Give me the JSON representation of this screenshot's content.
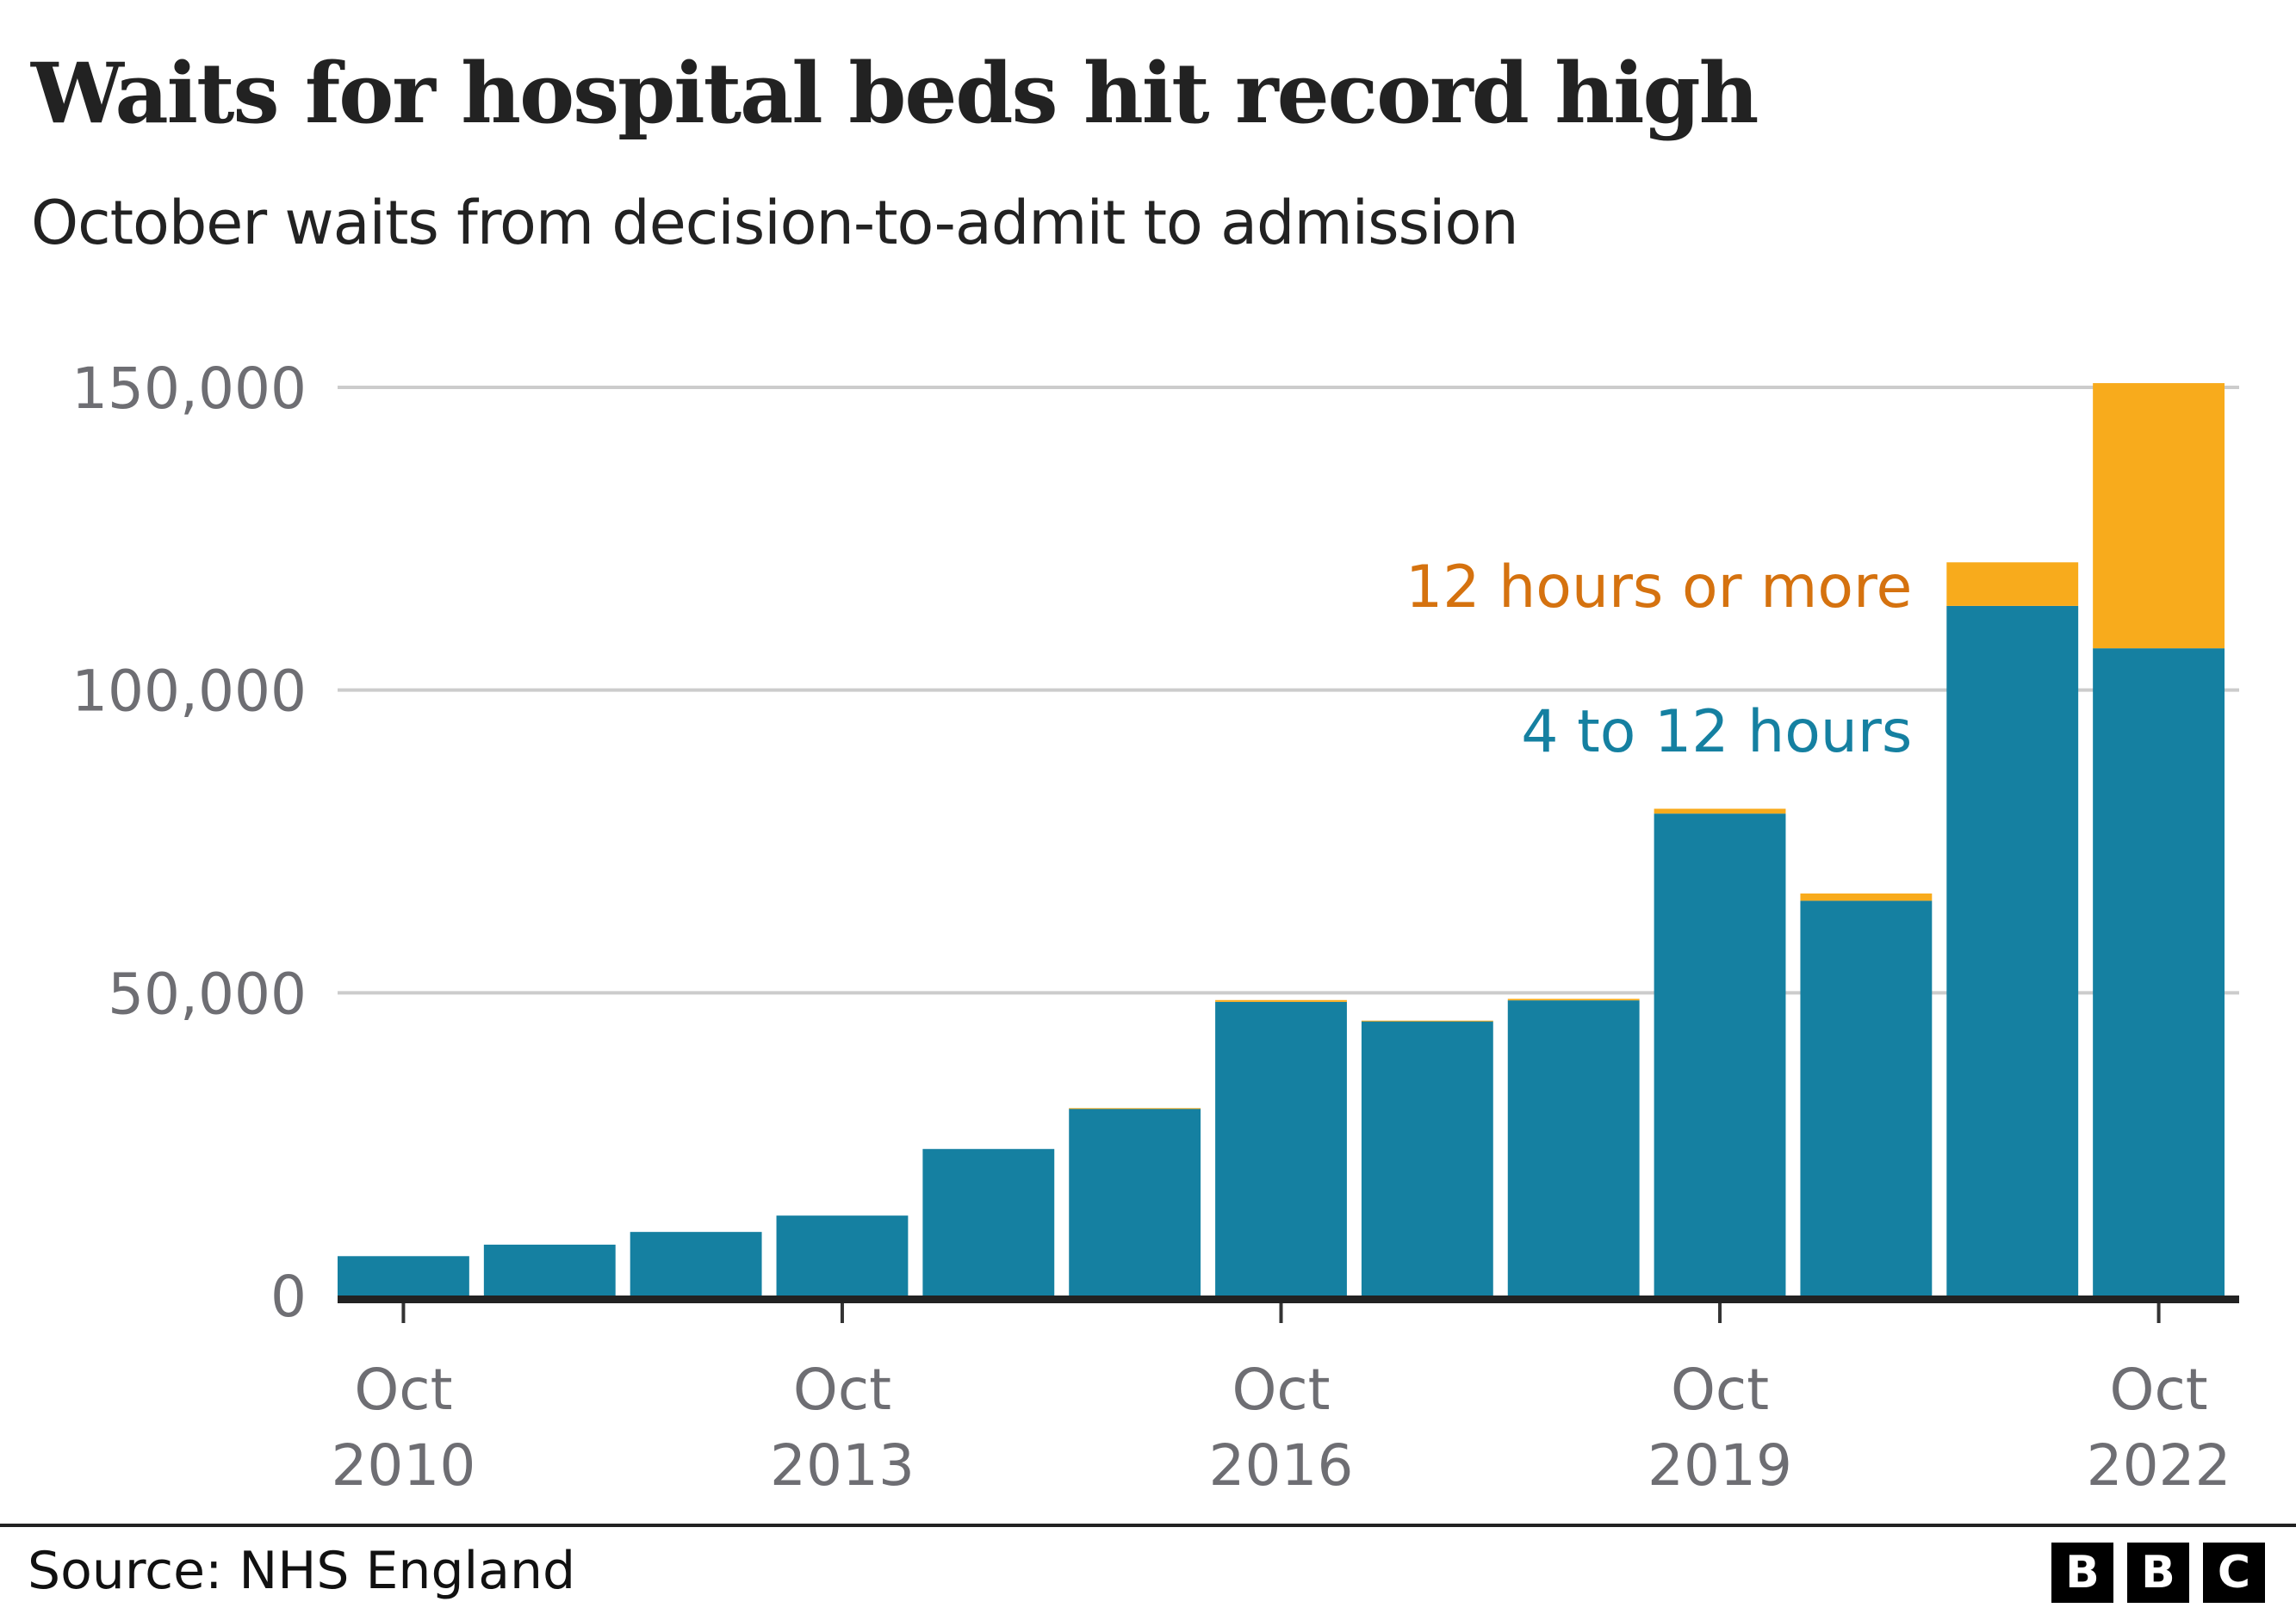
{
  "header": {
    "title": "Waits for hospital beds hit record high",
    "subtitle": "October waits from decision-to-admit to admission"
  },
  "footer": {
    "source": "Source: NHS England",
    "logo": [
      "B",
      "B",
      "C"
    ]
  },
  "colors": {
    "four_to_twelve": "#1580a1",
    "twelve_plus": "#f8ab1c",
    "twelve_plus_label": "#d5720f",
    "gridline": "#cccccc",
    "axis": "#222222",
    "tick_text": "#6e6e73"
  },
  "chart_data": {
    "type": "bar",
    "stacked": true,
    "title": "Waits for hospital beds hit record high",
    "subtitle": "October waits from decision-to-admit to admission",
    "xlabel": "",
    "ylabel": "",
    "ylim": [
      0,
      150000
    ],
    "yticks": [
      0,
      50000,
      100000,
      150000
    ],
    "ytick_labels": [
      "0",
      "50,000",
      "100,000",
      "150,000"
    ],
    "grid": true,
    "categories": [
      "Oct 2010",
      "Oct 2011",
      "Oct 2012",
      "Oct 2013",
      "Oct 2014",
      "Oct 2015",
      "Oct 2016",
      "Oct 2017",
      "Oct 2018",
      "Oct 2019",
      "Oct 2020",
      "Oct 2021",
      "Oct 2022"
    ],
    "xtick_labels": [
      {
        "category_index": 0,
        "line1": "Oct",
        "line2": "2010"
      },
      {
        "category_index": 3,
        "line1": "Oct",
        "line2": "2013"
      },
      {
        "category_index": 6,
        "line1": "Oct",
        "line2": "2016"
      },
      {
        "category_index": 9,
        "line1": "Oct",
        "line2": "2019"
      },
      {
        "category_index": 12,
        "line1": "Oct",
        "line2": "2022"
      }
    ],
    "series": [
      {
        "name": "4 to 12 hours",
        "color": "#1580a1",
        "values": [
          6500,
          8400,
          10500,
          13200,
          24200,
          30900,
          48500,
          45300,
          48750,
          79600,
          65200,
          113900,
          106900
        ]
      },
      {
        "name": "12 hours or more",
        "color": "#f8ab1c",
        "values": [
          0,
          0,
          0,
          0,
          0,
          50,
          300,
          100,
          250,
          800,
          1200,
          7200,
          43800
        ]
      }
    ],
    "legend": {
      "placement": "inline-right",
      "entries": [
        {
          "name": "12 hours or more",
          "color": "#d5720f"
        },
        {
          "name": "4 to 12 hours",
          "color": "#1580a1"
        }
      ]
    }
  }
}
